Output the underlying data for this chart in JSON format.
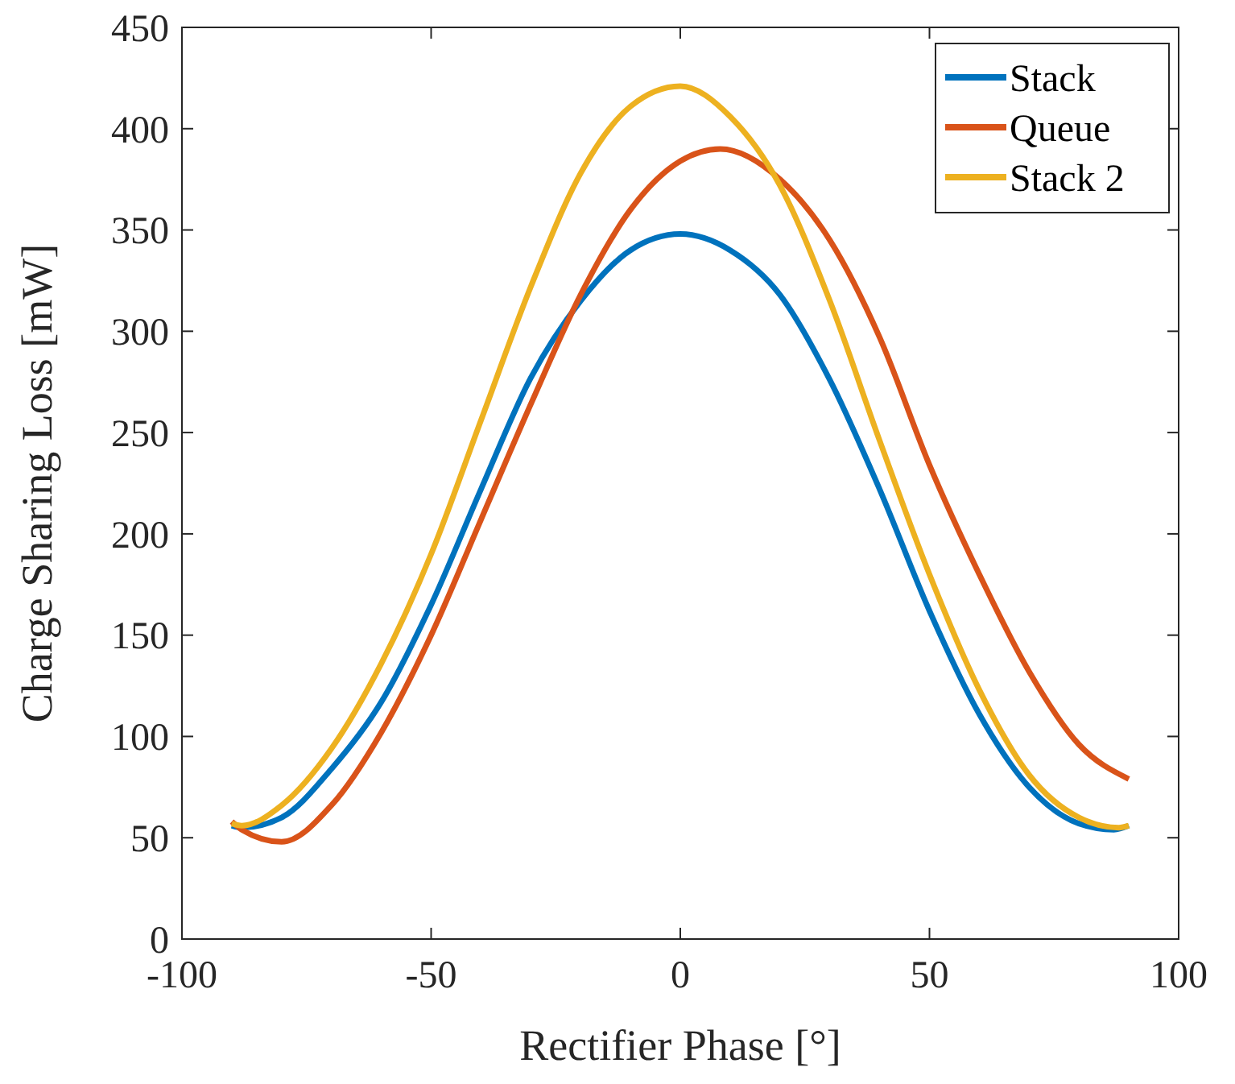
{
  "chart_data": {
    "type": "line",
    "xlabel": "Rectifier Phase [°]",
    "ylabel": "Charge Sharing Loss [mW]",
    "xlim": [
      -100,
      100
    ],
    "xticks": [
      -100,
      -50,
      0,
      50,
      100
    ],
    "ylim": [
      0,
      450
    ],
    "yticks": [
      0,
      50,
      100,
      150,
      200,
      250,
      300,
      350,
      400,
      450
    ],
    "grid": false,
    "legend": "top right",
    "line_style": "solid",
    "marker": "none",
    "series": [
      {
        "name": "Stack",
        "color": "#0072bd",
        "x": [
          -90,
          -88,
          -80,
          -70,
          -60,
          -50,
          -40,
          -30,
          -20,
          -10,
          0,
          10,
          20,
          30,
          40,
          50,
          60,
          70,
          80,
          87,
          90
        ],
        "values": [
          56,
          55,
          60,
          84,
          117,
          165,
          222,
          277,
          315,
          340,
          348,
          340,
          318,
          276,
          222,
          162,
          111,
          75,
          57,
          54,
          56
        ]
      },
      {
        "name": "Queue",
        "color": "#d95319",
        "x": [
          -90,
          -88,
          -80,
          -70,
          -60,
          -50,
          -40,
          -30,
          -20,
          -10,
          0,
          8,
          20,
          30,
          40,
          50,
          60,
          70,
          80,
          90
        ],
        "values": [
          58,
          54,
          48,
          66,
          102,
          150,
          207,
          264,
          318,
          360,
          384,
          390,
          375,
          345,
          297,
          234,
          180,
          132,
          96,
          79
        ]
      },
      {
        "name": "Stack 2",
        "color": "#edb120",
        "x": [
          -90,
          -88,
          -80,
          -70,
          -60,
          -50,
          -40,
          -30,
          -20,
          -10,
          0,
          10,
          20,
          30,
          40,
          50,
          60,
          70,
          80,
          88,
          90
        ],
        "values": [
          57,
          56,
          66,
          94,
          136,
          190,
          256,
          322,
          378,
          411,
          421,
          406,
          372,
          315,
          246,
          180,
          123,
          81,
          60,
          55,
          56
        ]
      }
    ]
  }
}
